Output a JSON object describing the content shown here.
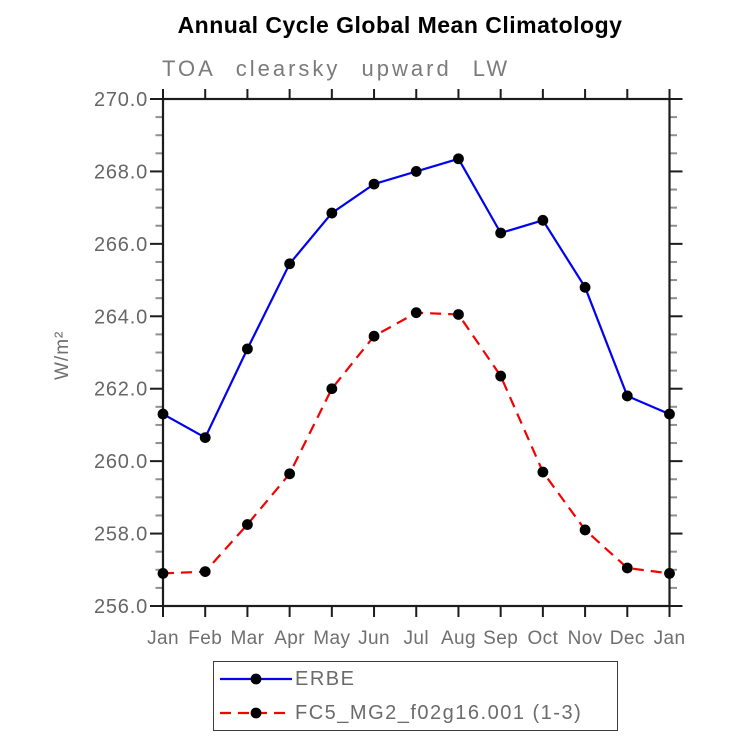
{
  "figure": {
    "background": "#ffffff"
  },
  "chart_data": {
    "type": "line",
    "title": "Annual Cycle Global Mean Climatology",
    "subtitle": "TOA clearsky upward LW",
    "ylabel": "W/m²",
    "xlabel": "",
    "categories": [
      "Jan",
      "Feb",
      "Mar",
      "Apr",
      "May",
      "Jun",
      "Jul",
      "Aug",
      "Sep",
      "Oct",
      "Nov",
      "Dec",
      "Jan"
    ],
    "ylim": [
      256.0,
      270.0
    ],
    "ytick_step": 2.0,
    "yminor_step": 0.5,
    "ytick_labels": [
      "256.0",
      "258.0",
      "260.0",
      "262.0",
      "264.0",
      "266.0",
      "268.0",
      "270.0"
    ],
    "grid": false,
    "legend_position": "bottom",
    "axis_color": "#1c1c1c",
    "minor_tick_color": "#8f8f8f",
    "tick_label_color": "#666666",
    "marker_color": "#000000",
    "series": [
      {
        "name": "ERBE",
        "color": "#0202f2",
        "line_style": "solid",
        "marker": "circle",
        "values": [
          261.3,
          260.65,
          263.1,
          265.45,
          266.85,
          267.65,
          268.0,
          268.35,
          266.3,
          266.65,
          264.8,
          261.8,
          261.3
        ]
      },
      {
        "name": "FC5_MG2_f02g16.001 (1-3)",
        "color": "#f20202",
        "line_style": "dashed",
        "marker": "circle",
        "values": [
          256.9,
          256.95,
          258.25,
          259.65,
          262.0,
          263.45,
          264.1,
          264.05,
          262.35,
          259.7,
          258.1,
          257.05,
          256.9
        ]
      }
    ]
  }
}
